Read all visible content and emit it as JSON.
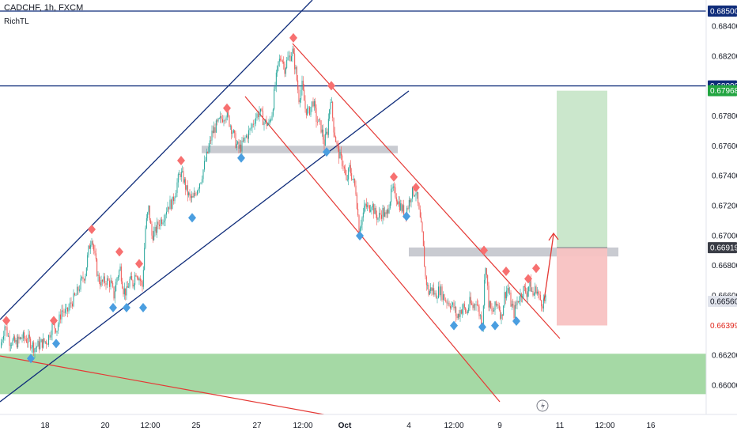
{
  "header": {
    "symbol_line": "CADCHF, 1h, FXCM",
    "indicator": "RichTL"
  },
  "chart_data": {
    "type": "candlestick",
    "symbol": "CADCHF",
    "interval": "1h",
    "source": "FXCM",
    "indicator": "RichTL",
    "y_range": [
      0.659,
      0.6862
    ],
    "y_ticks": [
      "0.68400",
      "0.68200",
      "0.67800",
      "0.67600",
      "0.67400",
      "0.67200",
      "0.67000",
      "0.66800",
      "0.66600",
      "0.66200",
      "0.66000"
    ],
    "x_ticks": [
      "18",
      "20",
      "12:00",
      "25",
      "27",
      "12:00",
      "Oct",
      "4",
      "12:00",
      "9",
      "11",
      "12:00",
      "16"
    ],
    "price_tags": [
      {
        "label": "0.68500",
        "style": "navy"
      },
      {
        "label": "0.68000",
        "style": "navy"
      },
      {
        "label": "0.67968",
        "style": "green"
      },
      {
        "label": "0.66919",
        "style": "dark"
      },
      {
        "label": "0.66560",
        "style": "gray"
      },
      {
        "label": "0.66399",
        "style": "red"
      }
    ],
    "close_path": [
      [
        0,
        0.6625
      ],
      [
        6,
        0.664
      ],
      [
        12,
        0.663
      ],
      [
        20,
        0.6628
      ],
      [
        28,
        0.6632
      ],
      [
        36,
        0.663
      ],
      [
        44,
        0.6625
      ],
      [
        52,
        0.6628
      ],
      [
        60,
        0.663
      ],
      [
        66,
        0.664
      ],
      [
        72,
        0.6638
      ],
      [
        78,
        0.665
      ],
      [
        84,
        0.6648
      ],
      [
        90,
        0.6655
      ],
      [
        96,
        0.666
      ],
      [
        102,
        0.6668
      ],
      [
        108,
        0.6675
      ],
      [
        112,
        0.669
      ],
      [
        116,
        0.67
      ],
      [
        120,
        0.6685
      ],
      [
        124,
        0.6672
      ],
      [
        128,
        0.6668
      ],
      [
        134,
        0.667
      ],
      [
        140,
        0.6668
      ],
      [
        144,
        0.666
      ],
      [
        148,
        0.6672
      ],
      [
        152,
        0.6678
      ],
      [
        156,
        0.6664
      ],
      [
        160,
        0.6662
      ],
      [
        164,
        0.667
      ],
      [
        168,
        0.6668
      ],
      [
        172,
        0.6676
      ],
      [
        176,
        0.6672
      ],
      [
        180,
        0.6666
      ],
      [
        184,
        0.6705
      ],
      [
        188,
        0.6718
      ],
      [
        192,
        0.67
      ],
      [
        196,
        0.6702
      ],
      [
        200,
        0.6708
      ],
      [
        206,
        0.6712
      ],
      [
        212,
        0.672
      ],
      [
        218,
        0.6722
      ],
      [
        224,
        0.6735
      ],
      [
        228,
        0.6742
      ],
      [
        232,
        0.6738
      ],
      [
        236,
        0.673
      ],
      [
        240,
        0.6725
      ],
      [
        244,
        0.6724
      ],
      [
        248,
        0.673
      ],
      [
        254,
        0.6738
      ],
      [
        260,
        0.675
      ],
      [
        264,
        0.6758
      ],
      [
        268,
        0.6768
      ],
      [
        272,
        0.6772
      ],
      [
        276,
        0.6775
      ],
      [
        280,
        0.6778
      ],
      [
        286,
        0.6782
      ],
      [
        290,
        0.6776
      ],
      [
        294,
        0.677
      ],
      [
        298,
        0.6762
      ],
      [
        302,
        0.6758
      ],
      [
        306,
        0.676
      ],
      [
        310,
        0.6765
      ],
      [
        316,
        0.677
      ],
      [
        322,
        0.6778
      ],
      [
        328,
        0.6783
      ],
      [
        334,
        0.6776
      ],
      [
        340,
        0.6774
      ],
      [
        344,
        0.6782
      ],
      [
        348,
        0.68
      ],
      [
        352,
        0.6815
      ],
      [
        356,
        0.682
      ],
      [
        360,
        0.6812
      ],
      [
        364,
        0.6818
      ],
      [
        370,
        0.6823
      ],
      [
        374,
        0.681
      ],
      [
        378,
        0.6792
      ],
      [
        382,
        0.68
      ],
      [
        386,
        0.6785
      ],
      [
        390,
        0.6782
      ],
      [
        396,
        0.679
      ],
      [
        400,
        0.6778
      ],
      [
        406,
        0.6772
      ],
      [
        410,
        0.6762
      ],
      [
        414,
        0.677
      ],
      [
        418,
        0.6793
      ],
      [
        422,
        0.6772
      ],
      [
        426,
        0.676
      ],
      [
        430,
        0.6752
      ],
      [
        434,
        0.6748
      ],
      [
        438,
        0.6735
      ],
      [
        442,
        0.6745
      ],
      [
        446,
        0.6738
      ],
      [
        450,
        0.673
      ],
      [
        454,
        0.6705
      ],
      [
        458,
        0.6712
      ],
      [
        462,
        0.672
      ],
      [
        466,
        0.6718
      ],
      [
        470,
        0.6722
      ],
      [
        474,
        0.6715
      ],
      [
        478,
        0.6712
      ],
      [
        484,
        0.6716
      ],
      [
        488,
        0.6712
      ],
      [
        492,
        0.6722
      ],
      [
        496,
        0.673
      ],
      [
        500,
        0.6728
      ],
      [
        504,
        0.6722
      ],
      [
        508,
        0.6718
      ],
      [
        512,
        0.6715
      ],
      [
        516,
        0.672
      ],
      [
        520,
        0.6728
      ],
      [
        526,
        0.673
      ],
      [
        530,
        0.6715
      ],
      [
        534,
        0.67
      ],
      [
        538,
        0.6672
      ],
      [
        542,
        0.6662
      ],
      [
        546,
        0.6665
      ],
      [
        550,
        0.666
      ],
      [
        556,
        0.6664
      ],
      [
        562,
        0.6658
      ],
      [
        568,
        0.6655
      ],
      [
        574,
        0.6652
      ],
      [
        578,
        0.6645
      ],
      [
        582,
        0.665
      ],
      [
        586,
        0.6652
      ],
      [
        590,
        0.6648
      ],
      [
        594,
        0.6655
      ],
      [
        598,
        0.6652
      ],
      [
        602,
        0.6657
      ],
      [
        606,
        0.6648
      ],
      [
        610,
        0.6642
      ],
      [
        614,
        0.6682
      ],
      [
        618,
        0.6655
      ],
      [
        622,
        0.6648
      ],
      [
        626,
        0.6652
      ],
      [
        630,
        0.6655
      ],
      [
        634,
        0.6645
      ],
      [
        638,
        0.666
      ],
      [
        642,
        0.6665
      ],
      [
        646,
        0.6655
      ],
      [
        650,
        0.6648
      ],
      [
        654,
        0.6656
      ],
      [
        658,
        0.666
      ],
      [
        662,
        0.6664
      ],
      [
        666,
        0.6662
      ],
      [
        670,
        0.6668
      ],
      [
        674,
        0.666
      ],
      [
        678,
        0.6665
      ],
      [
        682,
        0.6658
      ],
      [
        686,
        0.6655
      ],
      [
        690,
        0.6656
      ]
    ],
    "swing_highs": [
      [
        8,
        0.6641
      ],
      [
        68,
        0.6641
      ],
      [
        116,
        0.6702
      ],
      [
        151,
        0.6687
      ],
      [
        176,
        0.6679
      ],
      [
        229,
        0.6748
      ],
      [
        287,
        0.6783
      ],
      [
        371,
        0.683
      ],
      [
        419,
        0.6798
      ],
      [
        498,
        0.6737
      ],
      [
        526,
        0.673
      ],
      [
        612,
        0.6688
      ],
      [
        640,
        0.6674
      ],
      [
        668,
        0.6669
      ],
      [
        678,
        0.6676
      ]
    ],
    "swing_lows": [
      [
        39,
        0.6621
      ],
      [
        71,
        0.6631
      ],
      [
        143,
        0.6655
      ],
      [
        160,
        0.6655
      ],
      [
        181,
        0.6655
      ],
      [
        243,
        0.6715
      ],
      [
        305,
        0.6755
      ],
      [
        413,
        0.6759
      ],
      [
        455,
        0.6703
      ],
      [
        514,
        0.6716
      ],
      [
        574,
        0.6643
      ],
      [
        610,
        0.6642
      ],
      [
        626,
        0.6643
      ],
      [
        653,
        0.6646
      ]
    ],
    "zones": [
      {
        "name": "supply-demand-zone",
        "y1": 0.6621,
        "y2": 0.6594,
        "x1": 0,
        "x2": 893,
        "color": "#8fcf8f"
      },
      {
        "name": "resistance-band-upper",
        "y1": 0.676,
        "y2": 0.6755,
        "x1": 255,
        "x2": 503,
        "color": "#b2b5be"
      },
      {
        "name": "resistance-band-lower",
        "y1": 0.6692,
        "y2": 0.6686,
        "x1": 517,
        "x2": 782,
        "color": "#b2b5be"
      }
    ],
    "position": {
      "entry": 0.66919,
      "target": 0.67968,
      "stop": 0.66399,
      "x1": 704,
      "x2": 768
    },
    "horizontal_lines": [
      0.685,
      0.68
    ],
    "colors": {
      "bull": "#26a69a",
      "bear": "#ef5350",
      "navy_line": "#0f2c7a",
      "red_line": "#e53935",
      "swing_high": "#f77070",
      "swing_low": "#4a9ee0"
    }
  }
}
